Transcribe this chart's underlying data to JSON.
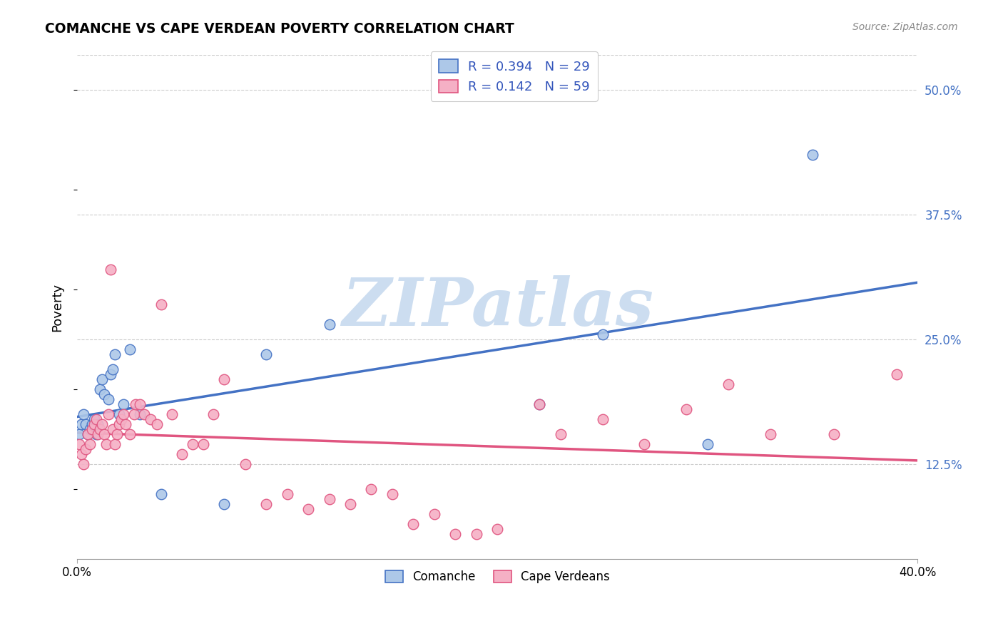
{
  "title": "COMANCHE VS CAPE VERDEAN POVERTY CORRELATION CHART",
  "source": "Source: ZipAtlas.com",
  "ylabel": "Poverty",
  "ytick_labels": [
    "12.5%",
    "25.0%",
    "37.5%",
    "50.0%"
  ],
  "ytick_values": [
    0.125,
    0.25,
    0.375,
    0.5
  ],
  "xmin": 0.0,
  "xmax": 0.4,
  "ymin": 0.03,
  "ymax": 0.535,
  "comanche_R": 0.394,
  "comanche_N": 29,
  "cape_verdean_R": 0.142,
  "cape_verdean_N": 59,
  "comanche_color": "#adc8e8",
  "cape_verdean_color": "#f5b0c5",
  "comanche_line_color": "#4472c4",
  "cape_verdean_line_color": "#e05580",
  "legend_text_color": "#3355bb",
  "watermark": "ZIPatlas",
  "watermark_color": "#ccddf0",
  "comanche_x": [
    0.001,
    0.002,
    0.003,
    0.004,
    0.005,
    0.006,
    0.007,
    0.008,
    0.009,
    0.01,
    0.011,
    0.012,
    0.013,
    0.015,
    0.016,
    0.017,
    0.018,
    0.02,
    0.022,
    0.025,
    0.03,
    0.04,
    0.07,
    0.09,
    0.12,
    0.22,
    0.25,
    0.3,
    0.35
  ],
  "comanche_y": [
    0.155,
    0.165,
    0.175,
    0.165,
    0.155,
    0.16,
    0.165,
    0.17,
    0.155,
    0.165,
    0.2,
    0.21,
    0.195,
    0.19,
    0.215,
    0.22,
    0.235,
    0.175,
    0.185,
    0.24,
    0.175,
    0.095,
    0.085,
    0.235,
    0.265,
    0.185,
    0.255,
    0.145,
    0.435
  ],
  "cape_verdean_x": [
    0.001,
    0.002,
    0.003,
    0.004,
    0.005,
    0.006,
    0.007,
    0.008,
    0.009,
    0.01,
    0.011,
    0.012,
    0.013,
    0.014,
    0.015,
    0.016,
    0.017,
    0.018,
    0.019,
    0.02,
    0.021,
    0.022,
    0.023,
    0.025,
    0.027,
    0.028,
    0.03,
    0.032,
    0.035,
    0.038,
    0.04,
    0.045,
    0.05,
    0.055,
    0.06,
    0.065,
    0.07,
    0.08,
    0.09,
    0.1,
    0.11,
    0.12,
    0.13,
    0.14,
    0.15,
    0.16,
    0.17,
    0.18,
    0.19,
    0.2,
    0.22,
    0.23,
    0.25,
    0.27,
    0.29,
    0.31,
    0.33,
    0.36,
    0.39
  ],
  "cape_verdean_y": [
    0.145,
    0.135,
    0.125,
    0.14,
    0.155,
    0.145,
    0.16,
    0.165,
    0.17,
    0.155,
    0.16,
    0.165,
    0.155,
    0.145,
    0.175,
    0.32,
    0.16,
    0.145,
    0.155,
    0.165,
    0.17,
    0.175,
    0.165,
    0.155,
    0.175,
    0.185,
    0.185,
    0.175,
    0.17,
    0.165,
    0.285,
    0.175,
    0.135,
    0.145,
    0.145,
    0.175,
    0.21,
    0.125,
    0.085,
    0.095,
    0.08,
    0.09,
    0.085,
    0.1,
    0.095,
    0.065,
    0.075,
    0.055,
    0.055,
    0.06,
    0.185,
    0.155,
    0.17,
    0.145,
    0.18,
    0.205,
    0.155,
    0.155,
    0.215
  ]
}
